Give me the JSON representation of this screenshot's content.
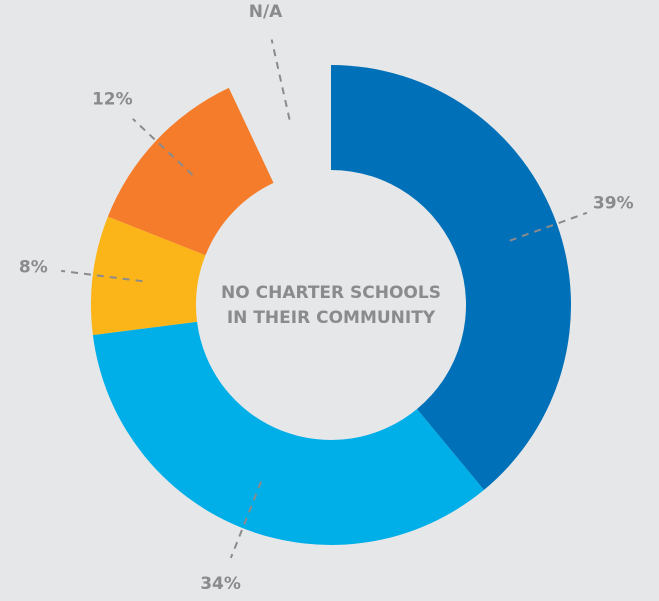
{
  "chart_data": {
    "type": "donut",
    "values": [
      39,
      34,
      8,
      12,
      7
    ],
    "value_labels": [
      "39%",
      "34%",
      "8%",
      "12%",
      "N/A"
    ],
    "colors": [
      "#0070b8",
      "#00aee8",
      "#fbb519",
      "#f47c2a",
      "#e6e7e8"
    ],
    "center_label": [
      "NO CHARTER SCHOOLS",
      "IN THEIR COMMUNITY"
    ]
  }
}
